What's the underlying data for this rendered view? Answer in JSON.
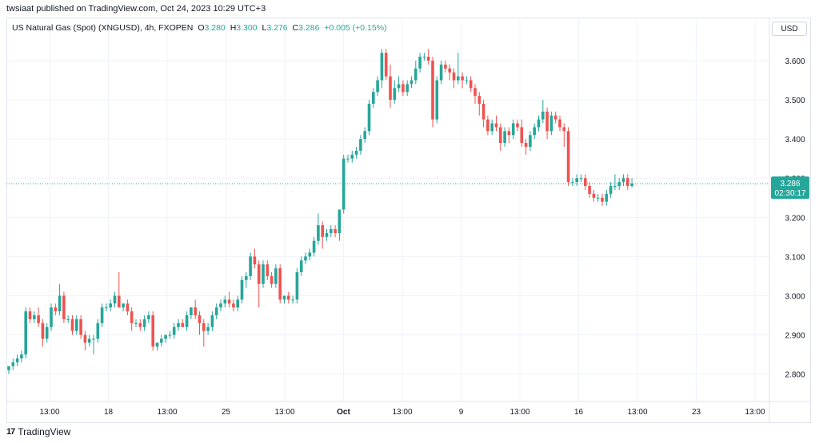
{
  "published_line": "twsiaat published on TradingView.com, Oct 24, 2023 10:29 UTC+3",
  "legend": {
    "symbol": "US Natural Gas (Spot) (XNGUSD), 4h, FXOPEN",
    "o_label": "O",
    "o_value": "3.280",
    "h_label": "H",
    "h_value": "3.300",
    "l_label": "L",
    "l_value": "3.276",
    "c_label": "C",
    "c_value": "3.286",
    "change": "+0.005 (+0.15%)"
  },
  "currency_button": "USD",
  "footer_logo": "17",
  "footer_text": "TradingView",
  "colors": {
    "up": "#26a69a",
    "down": "#ef5350",
    "grid": "#f0f3fa",
    "text": "#131722",
    "badge": "#26a69a"
  },
  "chart_data": {
    "type": "candlestick",
    "symbol": "XNGUSD",
    "timeframe": "4h",
    "y_ticks": [
      "3.600",
      "3.500",
      "3.400",
      "3.300",
      "3.200",
      "3.100",
      "3.000",
      "2.900",
      "2.800"
    ],
    "x_ticks": [
      "13:00",
      "18",
      "13:00",
      "25",
      "13:00",
      "Oct",
      "13:00",
      "9",
      "13:00",
      "16",
      "13:00",
      "23",
      "13:00"
    ],
    "ylim": [
      2.73,
      3.71
    ],
    "last_price": "3.286",
    "countdown": "02:30:17",
    "grid": true,
    "candles": [
      [
        2.81,
        2.82,
        2.8,
        2.82
      ],
      [
        2.82,
        2.84,
        2.81,
        2.83
      ],
      [
        2.83,
        2.85,
        2.82,
        2.84
      ],
      [
        2.84,
        2.86,
        2.83,
        2.85
      ],
      [
        2.85,
        2.97,
        2.84,
        2.96
      ],
      [
        2.96,
        2.97,
        2.93,
        2.94
      ],
      [
        2.94,
        2.96,
        2.93,
        2.95
      ],
      [
        2.95,
        2.97,
        2.92,
        2.93
      ],
      [
        2.93,
        2.94,
        2.87,
        2.89
      ],
      [
        2.89,
        2.93,
        2.88,
        2.92
      ],
      [
        2.92,
        2.98,
        2.91,
        2.97
      ],
      [
        2.97,
        2.98,
        2.95,
        2.96
      ],
      [
        2.96,
        3.03,
        2.95,
        3.0
      ],
      [
        3.0,
        3.01,
        2.93,
        2.94
      ],
      [
        2.94,
        2.95,
        2.93,
        2.94
      ],
      [
        2.94,
        2.95,
        2.9,
        2.91
      ],
      [
        2.91,
        2.95,
        2.9,
        2.94
      ],
      [
        2.94,
        2.95,
        2.89,
        2.9
      ],
      [
        2.9,
        2.91,
        2.86,
        2.88
      ],
      [
        2.88,
        2.9,
        2.87,
        2.89
      ],
      [
        2.89,
        2.9,
        2.85,
        2.89
      ],
      [
        2.89,
        2.94,
        2.88,
        2.93
      ],
      [
        2.93,
        2.98,
        2.92,
        2.97
      ],
      [
        2.97,
        2.98,
        2.96,
        2.97
      ],
      [
        2.97,
        2.99,
        2.96,
        2.98
      ],
      [
        2.98,
        3.01,
        2.97,
        3.0
      ],
      [
        3.0,
        3.06,
        2.97,
        2.97
      ],
      [
        2.97,
        2.98,
        2.96,
        2.98
      ],
      [
        2.98,
        2.99,
        2.95,
        2.96
      ],
      [
        2.96,
        2.97,
        2.91,
        2.93
      ],
      [
        2.93,
        2.94,
        2.92,
        2.93
      ],
      [
        2.93,
        2.94,
        2.91,
        2.92
      ],
      [
        2.92,
        2.95,
        2.91,
        2.94
      ],
      [
        2.94,
        2.96,
        2.93,
        2.95
      ],
      [
        2.95,
        2.96,
        2.86,
        2.87
      ],
      [
        2.87,
        2.88,
        2.86,
        2.88
      ],
      [
        2.88,
        2.9,
        2.87,
        2.89
      ],
      [
        2.89,
        2.9,
        2.88,
        2.9
      ],
      [
        2.9,
        2.91,
        2.89,
        2.9
      ],
      [
        2.9,
        2.93,
        2.89,
        2.92
      ],
      [
        2.92,
        2.94,
        2.91,
        2.93
      ],
      [
        2.93,
        2.94,
        2.92,
        2.92
      ],
      [
        2.92,
        2.96,
        2.91,
        2.95
      ],
      [
        2.95,
        2.97,
        2.94,
        2.97
      ],
      [
        2.97,
        2.99,
        2.94,
        2.95
      ],
      [
        2.95,
        2.96,
        2.9,
        2.93
      ],
      [
        2.93,
        2.94,
        2.87,
        2.91
      ],
      [
        2.91,
        2.93,
        2.9,
        2.92
      ],
      [
        2.92,
        2.96,
        2.91,
        2.95
      ],
      [
        2.95,
        2.98,
        2.94,
        2.97
      ],
      [
        2.97,
        2.99,
        2.96,
        2.98
      ],
      [
        2.98,
        3.0,
        2.97,
        2.99
      ],
      [
        2.99,
        3.01,
        2.97,
        2.98
      ],
      [
        2.98,
        2.99,
        2.96,
        2.97
      ],
      [
        2.97,
        3.0,
        2.96,
        2.99
      ],
      [
        2.99,
        3.05,
        2.98,
        3.04
      ],
      [
        3.04,
        3.06,
        3.02,
        3.05
      ],
      [
        3.05,
        3.11,
        3.04,
        3.1
      ],
      [
        3.1,
        3.12,
        3.07,
        3.08
      ],
      [
        3.08,
        3.09,
        2.97,
        3.03
      ],
      [
        3.03,
        3.09,
        3.02,
        3.08
      ],
      [
        3.08,
        3.09,
        3.04,
        3.05
      ],
      [
        3.05,
        3.06,
        3.02,
        3.03
      ],
      [
        3.03,
        3.08,
        3.02,
        3.07
      ],
      [
        3.07,
        3.08,
        2.98,
        2.99
      ],
      [
        2.99,
        3.0,
        2.98,
        3.0
      ],
      [
        3.0,
        3.01,
        2.98,
        2.99
      ],
      [
        2.99,
        3.0,
        2.98,
        2.99
      ],
      [
        2.99,
        3.07,
        2.98,
        3.06
      ],
      [
        3.06,
        3.1,
        3.05,
        3.09
      ],
      [
        3.09,
        3.11,
        3.08,
        3.1
      ],
      [
        3.1,
        3.12,
        3.09,
        3.11
      ],
      [
        3.11,
        3.15,
        3.1,
        3.14
      ],
      [
        3.14,
        3.21,
        3.13,
        3.18
      ],
      [
        3.18,
        3.19,
        3.12,
        3.15
      ],
      [
        3.15,
        3.17,
        3.14,
        3.16
      ],
      [
        3.16,
        3.18,
        3.15,
        3.17
      ],
      [
        3.17,
        3.18,
        3.15,
        3.16
      ],
      [
        3.16,
        3.22,
        3.14,
        3.22
      ],
      [
        3.22,
        3.36,
        3.21,
        3.35
      ],
      [
        3.35,
        3.36,
        3.34,
        3.35
      ],
      [
        3.35,
        3.37,
        3.34,
        3.36
      ],
      [
        3.36,
        3.38,
        3.35,
        3.37
      ],
      [
        3.37,
        3.41,
        3.36,
        3.4
      ],
      [
        3.4,
        3.43,
        3.39,
        3.42
      ],
      [
        3.42,
        3.5,
        3.41,
        3.49
      ],
      [
        3.49,
        3.53,
        3.48,
        3.52
      ],
      [
        3.52,
        3.56,
        3.51,
        3.55
      ],
      [
        3.55,
        3.63,
        3.53,
        3.62
      ],
      [
        3.62,
        3.63,
        3.55,
        3.56
      ],
      [
        3.56,
        3.59,
        3.48,
        3.5
      ],
      [
        3.5,
        3.55,
        3.49,
        3.53
      ],
      [
        3.53,
        3.56,
        3.52,
        3.54
      ],
      [
        3.54,
        3.55,
        3.51,
        3.52
      ],
      [
        3.52,
        3.55,
        3.51,
        3.54
      ],
      [
        3.54,
        3.56,
        3.53,
        3.55
      ],
      [
        3.55,
        3.6,
        3.54,
        3.58
      ],
      [
        3.58,
        3.62,
        3.57,
        3.61
      ],
      [
        3.61,
        3.62,
        3.6,
        3.61
      ],
      [
        3.61,
        3.63,
        3.59,
        3.6
      ],
      [
        3.6,
        3.61,
        3.43,
        3.45
      ],
      [
        3.45,
        3.56,
        3.44,
        3.55
      ],
      [
        3.55,
        3.6,
        3.54,
        3.59
      ],
      [
        3.59,
        3.6,
        3.57,
        3.58
      ],
      [
        3.58,
        3.59,
        3.55,
        3.57
      ],
      [
        3.57,
        3.58,
        3.53,
        3.55
      ],
      [
        3.55,
        3.62,
        3.54,
        3.56
      ],
      [
        3.56,
        3.57,
        3.53,
        3.55
      ],
      [
        3.55,
        3.56,
        3.54,
        3.55
      ],
      [
        3.55,
        3.56,
        3.52,
        3.53
      ],
      [
        3.53,
        3.54,
        3.49,
        3.51
      ],
      [
        3.51,
        3.52,
        3.46,
        3.49
      ],
      [
        3.49,
        3.5,
        3.43,
        3.45
      ],
      [
        3.45,
        3.46,
        3.41,
        3.42
      ],
      [
        3.42,
        3.45,
        3.41,
        3.44
      ],
      [
        3.44,
        3.46,
        3.42,
        3.43
      ],
      [
        3.43,
        3.44,
        3.37,
        3.39
      ],
      [
        3.39,
        3.43,
        3.38,
        3.42
      ],
      [
        3.42,
        3.43,
        3.39,
        3.41
      ],
      [
        3.41,
        3.45,
        3.4,
        3.44
      ],
      [
        3.44,
        3.45,
        3.42,
        3.43
      ],
      [
        3.43,
        3.45,
        3.38,
        3.39
      ],
      [
        3.39,
        3.4,
        3.36,
        3.38
      ],
      [
        3.38,
        3.42,
        3.37,
        3.41
      ],
      [
        3.41,
        3.44,
        3.4,
        3.43
      ],
      [
        3.43,
        3.46,
        3.42,
        3.45
      ],
      [
        3.45,
        3.5,
        3.44,
        3.47
      ],
      [
        3.47,
        3.48,
        3.4,
        3.42
      ],
      [
        3.42,
        3.47,
        3.41,
        3.46
      ],
      [
        3.46,
        3.47,
        3.44,
        3.45
      ],
      [
        3.45,
        3.46,
        3.42,
        3.43
      ],
      [
        3.43,
        3.44,
        3.38,
        3.42
      ],
      [
        3.42,
        3.43,
        3.28,
        3.29
      ],
      [
        3.29,
        3.3,
        3.28,
        3.29
      ],
      [
        3.29,
        3.31,
        3.28,
        3.3
      ],
      [
        3.3,
        3.31,
        3.29,
        3.3
      ],
      [
        3.3,
        3.31,
        3.27,
        3.28
      ],
      [
        3.28,
        3.29,
        3.25,
        3.26
      ],
      [
        3.26,
        3.27,
        3.24,
        3.25
      ],
      [
        3.25,
        3.26,
        3.24,
        3.25
      ],
      [
        3.25,
        3.26,
        3.23,
        3.24
      ],
      [
        3.24,
        3.27,
        3.23,
        3.26
      ],
      [
        3.26,
        3.29,
        3.25,
        3.28
      ],
      [
        3.28,
        3.31,
        3.27,
        3.28
      ],
      [
        3.28,
        3.3,
        3.27,
        3.29
      ],
      [
        3.29,
        3.31,
        3.28,
        3.3
      ],
      [
        3.3,
        3.31,
        3.27,
        3.28
      ],
      [
        3.28,
        3.3,
        3.276,
        3.286
      ]
    ]
  }
}
